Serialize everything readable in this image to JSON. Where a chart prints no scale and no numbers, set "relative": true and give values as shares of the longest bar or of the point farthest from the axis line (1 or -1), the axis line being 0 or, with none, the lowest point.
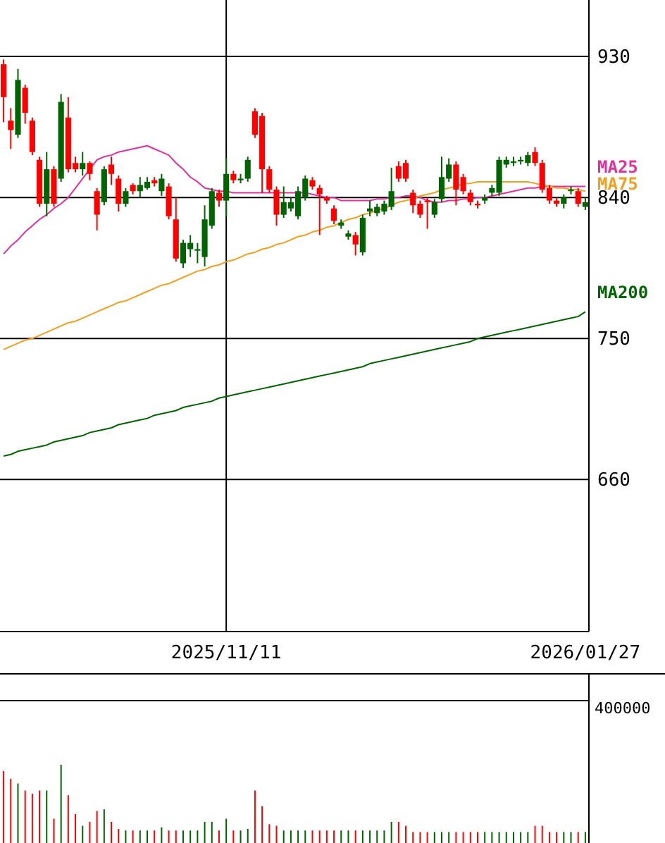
{
  "chart_data": [
    {
      "type": "candlestick",
      "categories": [
        null,
        null,
        null,
        null,
        null,
        null,
        null,
        null,
        null,
        null,
        null,
        null,
        null,
        null,
        null,
        null,
        null,
        null,
        null,
        null,
        null,
        null,
        null,
        null,
        null,
        null,
        null,
        null,
        null,
        null,
        null,
        "2025/11/11",
        null,
        null,
        null,
        null,
        null,
        null,
        null,
        null,
        null,
        null,
        null,
        null,
        null,
        null,
        null,
        null,
        null,
        null,
        null,
        null,
        null,
        null,
        null,
        null,
        null,
        null,
        null,
        null,
        null,
        null,
        null,
        null,
        null,
        null,
        null,
        null,
        null,
        null,
        null,
        null,
        null,
        null,
        null,
        null,
        null,
        null,
        null,
        null,
        null,
        "2026/01/27"
      ],
      "ohlc": [
        [
          925,
          928,
          888,
          904
        ],
        [
          889,
          897,
          871,
          883
        ],
        [
          880,
          922,
          878,
          915
        ],
        [
          910,
          912,
          887,
          894
        ],
        [
          889,
          891,
          867,
          869
        ],
        [
          864,
          866,
          834,
          836
        ],
        [
          836,
          869,
          828,
          858
        ],
        [
          858,
          860,
          834,
          836
        ],
        [
          852,
          906,
          850,
          901
        ],
        [
          891,
          904,
          856,
          858
        ],
        [
          862,
          866,
          856,
          858
        ],
        [
          858,
          869,
          854,
          862
        ],
        [
          862,
          863,
          851,
          855
        ],
        [
          844,
          846,
          819,
          829
        ],
        [
          837,
          860,
          835,
          858
        ],
        [
          861,
          866,
          848,
          855
        ],
        [
          852,
          854,
          831,
          836
        ],
        [
          836,
          846,
          834,
          844
        ],
        [
          848,
          849,
          842,
          844
        ],
        [
          844,
          853,
          840,
          848
        ],
        [
          846,
          853,
          845,
          850
        ],
        [
          851,
          853,
          847,
          849
        ],
        [
          844,
          855,
          841,
          852
        ],
        [
          847,
          849,
          826,
          828
        ],
        [
          826,
          840,
          799,
          801
        ],
        [
          798,
          813,
          795,
          811
        ],
        [
          807,
          816,
          802,
          811
        ],
        [
          806,
          811,
          798,
          807
        ],
        [
          802,
          835,
          796,
          826
        ],
        [
          822,
          846,
          820,
          844
        ],
        [
          843,
          845,
          834,
          838
        ],
        [
          838,
          865,
          828,
          855
        ],
        [
          855,
          857,
          849,
          851
        ],
        [
          851,
          855,
          849,
          852
        ],
        [
          852,
          866,
          850,
          864
        ],
        [
          895,
          897,
          878,
          880
        ],
        [
          892,
          894,
          843,
          858
        ],
        [
          858,
          860,
          843,
          845
        ],
        [
          845,
          847,
          822,
          829
        ],
        [
          829,
          847,
          827,
          837
        ],
        [
          833,
          840,
          831,
          837
        ],
        [
          828,
          847,
          826,
          844
        ],
        [
          840,
          854,
          838,
          852
        ],
        [
          851,
          853,
          845,
          847
        ],
        [
          846,
          848,
          816,
          842
        ],
        [
          840,
          841,
          836,
          838
        ],
        [
          833,
          835,
          823,
          825
        ],
        [
          822,
          826,
          820,
          824
        ],
        [
          815,
          819,
          813,
          817
        ],
        [
          816,
          818,
          803,
          810
        ],
        [
          805,
          829,
          803,
          827
        ],
        [
          831,
          838,
          828,
          833
        ],
        [
          830,
          836,
          828,
          834
        ],
        [
          831,
          838,
          829,
          836
        ],
        [
          834,
          859,
          832,
          844
        ],
        [
          860,
          863,
          850,
          852
        ],
        [
          862,
          864,
          850,
          852
        ],
        [
          843,
          845,
          830,
          835
        ],
        [
          836,
          838,
          827,
          829
        ],
        [
          838,
          840,
          820,
          837
        ],
        [
          829,
          839,
          827,
          837
        ],
        [
          839,
          866,
          837,
          853
        ],
        [
          852,
          865,
          850,
          861
        ],
        [
          861,
          863,
          835,
          845
        ],
        [
          853,
          855,
          842,
          844
        ],
        [
          843,
          845,
          835,
          837
        ],
        [
          836,
          838,
          833,
          835
        ],
        [
          838,
          842,
          836,
          840
        ],
        [
          843,
          848,
          841,
          846
        ],
        [
          843,
          866,
          841,
          864
        ],
        [
          861,
          866,
          859,
          864
        ],
        [
          862,
          866,
          860,
          863
        ],
        [
          863,
          866,
          861,
          864
        ],
        [
          862,
          869,
          860,
          867
        ],
        [
          869,
          872,
          860,
          862
        ],
        [
          862,
          864,
          843,
          845
        ],
        [
          846,
          848,
          836,
          838
        ],
        [
          838,
          840,
          834,
          836
        ],
        [
          836,
          842,
          833,
          840
        ],
        [
          844,
          847,
          842,
          845
        ],
        [
          844,
          846,
          834,
          836
        ],
        [
          834,
          840,
          832,
          837
        ]
      ],
      "colors": [
        "#ff0000",
        "#ff0000",
        "#006400",
        "#ff0000",
        "#ff0000",
        "#ff0000",
        "#006400",
        "#ff0000",
        "#006400",
        "#ff0000",
        "#ff0000",
        "#006400",
        "#ff0000",
        "#ff0000",
        "#006400",
        "#ff0000",
        "#ff0000",
        "#006400",
        "#ff0000",
        "#006400",
        "#006400",
        "#ff0000",
        "#006400",
        "#ff0000",
        "#ff0000",
        "#006400",
        "#006400",
        "#006400",
        "#006400",
        "#006400",
        "#ff0000",
        "#006400",
        "#ff0000",
        "#006400",
        "#006400",
        "#ff0000",
        "#ff0000",
        "#ff0000",
        "#ff0000",
        "#006400",
        "#006400",
        "#006400",
        "#006400",
        "#ff0000",
        "#ff0000",
        "#ff0000",
        "#ff0000",
        "#006400",
        "#006400",
        "#ff0000",
        "#006400",
        "#006400",
        "#006400",
        "#006400",
        "#006400",
        "#ff0000",
        "#ff0000",
        "#ff0000",
        "#ff0000",
        "#ff0000",
        "#006400",
        "#006400",
        "#006400",
        "#ff0000",
        "#ff0000",
        "#ff0000",
        "#ff0000",
        "#006400",
        "#006400",
        "#006400",
        "#006400",
        "#006400",
        "#006400",
        "#006400",
        "#ff0000",
        "#ff0000",
        "#ff0000",
        "#ff0000",
        "#006400",
        "#006400",
        "#ff0000",
        "#006400"
      ],
      "series": [
        {
          "name": "MA25",
          "type": "line",
          "color": "#e0309c",
          "values": [
            804,
            809,
            813,
            818,
            822,
            826,
            829,
            833,
            836,
            840,
            846,
            852,
            858,
            864,
            866,
            867,
            869,
            870,
            871,
            872,
            873,
            871,
            869,
            867,
            862,
            858,
            853,
            850,
            846,
            845,
            844,
            844,
            843,
            843,
            843,
            843,
            843,
            843,
            843,
            843,
            843,
            843,
            843,
            842,
            841,
            840,
            840,
            838,
            838,
            838,
            838,
            838,
            839,
            839,
            840,
            840,
            841,
            841,
            840,
            838,
            837,
            837,
            838,
            838,
            839,
            839,
            840,
            840,
            841,
            842,
            843,
            844,
            845,
            846,
            846,
            847,
            847,
            847,
            847,
            847,
            847,
            847
          ]
        },
        {
          "name": "MA75",
          "type": "line",
          "color": "#f0a020",
          "values": [
            743,
            745,
            747,
            749,
            750,
            752,
            754,
            756,
            758,
            760,
            761,
            763,
            765,
            767,
            769,
            771,
            773,
            774,
            776,
            778,
            780,
            782,
            784,
            785,
            787,
            789,
            791,
            793,
            794,
            796,
            797,
            799,
            800,
            802,
            804,
            805,
            807,
            808,
            810,
            811,
            813,
            815,
            816,
            818,
            819,
            821,
            822,
            824,
            826,
            827,
            829,
            830,
            832,
            833,
            835,
            837,
            838,
            839,
            841,
            842,
            843,
            845,
            846,
            847,
            849,
            849,
            850,
            850,
            850,
            850,
            850,
            850,
            850,
            850,
            849,
            848,
            847,
            846,
            846,
            845,
            845,
            844
          ]
        },
        {
          "name": "MA200",
          "type": "line",
          "color": "#006400",
          "values": [
            675,
            676,
            678,
            679,
            680,
            681,
            682,
            684,
            685,
            686,
            687,
            688,
            690,
            691,
            692,
            693,
            695,
            696,
            697,
            698,
            699,
            701,
            702,
            703,
            704,
            706,
            707,
            708,
            709,
            710,
            712,
            713,
            714,
            715,
            716,
            717,
            718,
            719,
            720,
            721,
            722,
            723,
            724,
            725,
            726,
            727,
            728,
            729,
            730,
            731,
            732,
            734,
            735,
            736,
            737,
            738,
            739,
            740,
            741,
            742,
            743,
            744,
            745,
            746,
            747,
            748,
            750,
            751,
            752,
            753,
            754,
            755,
            756,
            757,
            758,
            759,
            760,
            761,
            762,
            763,
            764,
            767
          ]
        }
      ],
      "ylim": [
        563,
        966
      ],
      "yticks": [
        660,
        750,
        840,
        930
      ],
      "grid": true
    },
    {
      "type": "bar",
      "relative": true,
      "categories": [
        null,
        null,
        null,
        null,
        null,
        null,
        null,
        null,
        null,
        null,
        null,
        null,
        null,
        null,
        null,
        null,
        null,
        null,
        null,
        null,
        null,
        null,
        null,
        null,
        null,
        null,
        null,
        null,
        null,
        null,
        null,
        null,
        null,
        null,
        null,
        null,
        null,
        null,
        null,
        null,
        null,
        null,
        null,
        null,
        null,
        null,
        null,
        null,
        null,
        null,
        null,
        null,
        null,
        null,
        null,
        null,
        null,
        null,
        null,
        null,
        null,
        null,
        null,
        null,
        null,
        null,
        null,
        null,
        null,
        null,
        null,
        null,
        null,
        null,
        null,
        null,
        null,
        null,
        null,
        null,
        null,
        null
      ],
      "values": [
        0.92,
        0.82,
        0.76,
        0.67,
        0.63,
        0.67,
        0.67,
        0.31,
        1,
        0.61,
        0.37,
        0.22,
        0.27,
        0.41,
        0.43,
        0.27,
        0.18,
        0.16,
        0.16,
        0.16,
        0.16,
        0.16,
        0.2,
        0.16,
        0.16,
        0.16,
        0.16,
        0.16,
        0.27,
        0.27,
        0.16,
        0.31,
        0.16,
        0.16,
        0.18,
        0.67,
        0.47,
        0.24,
        0.22,
        0.16,
        0.16,
        0.16,
        0.16,
        0.16,
        0.16,
        0.16,
        0.16,
        0.16,
        0.16,
        0.16,
        0.16,
        0.16,
        0.16,
        0.16,
        0.27,
        0.27,
        0.22,
        0.14,
        0.14,
        0.14,
        0.14,
        0.14,
        0.14,
        0.14,
        0.14,
        0.14,
        0.14,
        0.14,
        0.14,
        0.14,
        0.14,
        0.14,
        0.14,
        0.14,
        0.22,
        0.22,
        0.14,
        0.14,
        0.14,
        0.14,
        0.14,
        0.14
      ],
      "colors": [
        "#ff0000",
        "#ff0000",
        "#006400",
        "#ff0000",
        "#ff0000",
        "#ff0000",
        "#006400",
        "#ff0000",
        "#006400",
        "#ff0000",
        "#ff0000",
        "#006400",
        "#ff0000",
        "#ff0000",
        "#006400",
        "#ff0000",
        "#ff0000",
        "#006400",
        "#ff0000",
        "#006400",
        "#006400",
        "#ff0000",
        "#006400",
        "#ff0000",
        "#ff0000",
        "#006400",
        "#006400",
        "#006400",
        "#006400",
        "#006400",
        "#ff0000",
        "#006400",
        "#ff0000",
        "#006400",
        "#006400",
        "#ff0000",
        "#ff0000",
        "#ff0000",
        "#ff0000",
        "#006400",
        "#006400",
        "#006400",
        "#006400",
        "#ff0000",
        "#ff0000",
        "#ff0000",
        "#ff0000",
        "#006400",
        "#006400",
        "#ff0000",
        "#006400",
        "#006400",
        "#006400",
        "#006400",
        "#006400",
        "#ff0000",
        "#ff0000",
        "#ff0000",
        "#ff0000",
        "#ff0000",
        "#006400",
        "#006400",
        "#006400",
        "#ff0000",
        "#ff0000",
        "#ff0000",
        "#ff0000",
        "#006400",
        "#006400",
        "#006400",
        "#006400",
        "#006400",
        "#006400",
        "#006400",
        "#ff0000",
        "#ff0000",
        "#ff0000",
        "#ff0000",
        "#006400",
        "#006400",
        "#ff0000",
        "#006400"
      ],
      "annotations": [
        "400000"
      ]
    }
  ]
}
